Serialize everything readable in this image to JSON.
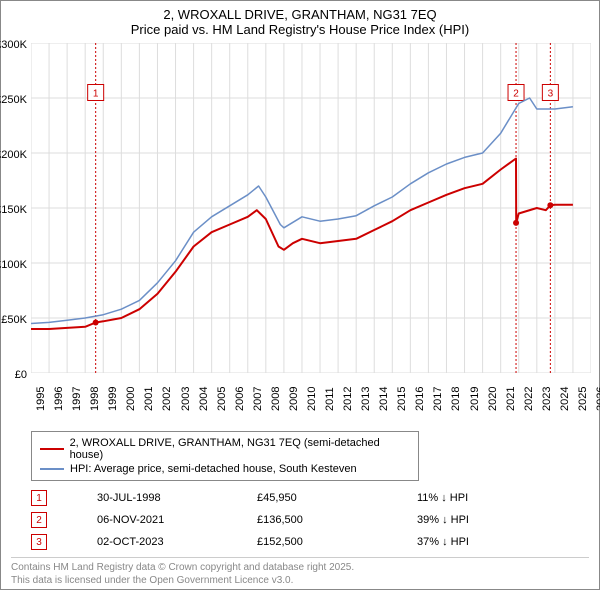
{
  "title1": "2, WROXALL DRIVE, GRANTHAM, NG31 7EQ",
  "title2": "Price paid vs. HM Land Registry's House Price Index (HPI)",
  "chart": {
    "type": "line",
    "x_years": [
      1995,
      1996,
      1997,
      1998,
      1999,
      2000,
      2001,
      2002,
      2003,
      2004,
      2005,
      2006,
      2007,
      2008,
      2009,
      2010,
      2011,
      2012,
      2013,
      2014,
      2015,
      2016,
      2017,
      2018,
      2019,
      2020,
      2021,
      2022,
      2023,
      2024,
      2025,
      2026
    ],
    "ylim": [
      0,
      300000
    ],
    "ytick_step": 50000,
    "yticks_labels": [
      "£0",
      "£50K",
      "£100K",
      "£150K",
      "£200K",
      "£250K",
      "£300K"
    ],
    "grid_color": "#dddddd",
    "background_color": "#ffffff",
    "plot_border_color": "#888888",
    "marker_line_color": "#cc0000",
    "marker_line_dash": "2,2",
    "series": [
      {
        "name": "red",
        "color": "#cc0000",
        "width": 2,
        "data": [
          [
            1995,
            40000
          ],
          [
            1996,
            40000
          ],
          [
            1997,
            41000
          ],
          [
            1998,
            42000
          ],
          [
            1998.58,
            45950
          ],
          [
            1999,
            47000
          ],
          [
            2000,
            50000
          ],
          [
            2001,
            58000
          ],
          [
            2002,
            72000
          ],
          [
            2003,
            92000
          ],
          [
            2004,
            115000
          ],
          [
            2005,
            128000
          ],
          [
            2006,
            135000
          ],
          [
            2007,
            142000
          ],
          [
            2007.5,
            148000
          ],
          [
            2008,
            140000
          ],
          [
            2008.7,
            115000
          ],
          [
            2009,
            112000
          ],
          [
            2009.5,
            118000
          ],
          [
            2010,
            122000
          ],
          [
            2011,
            118000
          ],
          [
            2012,
            120000
          ],
          [
            2013,
            122000
          ],
          [
            2014,
            130000
          ],
          [
            2015,
            138000
          ],
          [
            2016,
            148000
          ],
          [
            2017,
            155000
          ],
          [
            2018,
            162000
          ],
          [
            2019,
            168000
          ],
          [
            2020,
            172000
          ],
          [
            2021,
            185000
          ],
          [
            2021.85,
            195000
          ],
          [
            2021.86,
            136500
          ],
          [
            2022,
            145000
          ],
          [
            2023,
            150000
          ],
          [
            2023.5,
            148000
          ],
          [
            2023.75,
            152500
          ],
          [
            2024,
            153000
          ],
          [
            2025,
            153000
          ]
        ]
      },
      {
        "name": "blue",
        "color": "#6b8fc7",
        "width": 1.5,
        "data": [
          [
            1995,
            45000
          ],
          [
            1996,
            46000
          ],
          [
            1997,
            48000
          ],
          [
            1998,
            50000
          ],
          [
            1999,
            53000
          ],
          [
            2000,
            58000
          ],
          [
            2001,
            66000
          ],
          [
            2002,
            82000
          ],
          [
            2003,
            102000
          ],
          [
            2004,
            128000
          ],
          [
            2005,
            142000
          ],
          [
            2006,
            152000
          ],
          [
            2007,
            162000
          ],
          [
            2007.6,
            170000
          ],
          [
            2008,
            160000
          ],
          [
            2008.8,
            135000
          ],
          [
            2009,
            132000
          ],
          [
            2010,
            142000
          ],
          [
            2011,
            138000
          ],
          [
            2012,
            140000
          ],
          [
            2013,
            143000
          ],
          [
            2014,
            152000
          ],
          [
            2015,
            160000
          ],
          [
            2016,
            172000
          ],
          [
            2017,
            182000
          ],
          [
            2018,
            190000
          ],
          [
            2019,
            196000
          ],
          [
            2020,
            200000
          ],
          [
            2021,
            218000
          ],
          [
            2022,
            245000
          ],
          [
            2022.6,
            250000
          ],
          [
            2023,
            240000
          ],
          [
            2024,
            240000
          ],
          [
            2025,
            242000
          ]
        ]
      }
    ],
    "markers": [
      {
        "n": "1",
        "year": 1998.58,
        "box_y": 255000
      },
      {
        "n": "2",
        "year": 2021.85,
        "box_y": 255000
      },
      {
        "n": "3",
        "year": 2023.75,
        "box_y": 255000
      }
    ],
    "red_dots": [
      {
        "year": 1998.58,
        "value": 45950
      },
      {
        "year": 2021.85,
        "value": 136500
      },
      {
        "year": 2023.75,
        "value": 152500
      }
    ]
  },
  "legend": [
    {
      "color": "#cc0000",
      "label": "2, WROXALL DRIVE, GRANTHAM, NG31 7EQ (semi-detached house)"
    },
    {
      "color": "#6b8fc7",
      "label": "HPI: Average price, semi-detached house, South Kesteven"
    }
  ],
  "marker_table": [
    {
      "n": "1",
      "date": "30-JUL-1998",
      "price": "£45,950",
      "delta": "11% ↓ HPI"
    },
    {
      "n": "2",
      "date": "06-NOV-2021",
      "price": "£136,500",
      "delta": "39% ↓ HPI"
    },
    {
      "n": "3",
      "date": "02-OCT-2023",
      "price": "£152,500",
      "delta": "37% ↓ HPI"
    }
  ],
  "footer1": "Contains HM Land Registry data © Crown copyright and database right 2025.",
  "footer2": "This data is licensed under the Open Government Licence v3.0."
}
